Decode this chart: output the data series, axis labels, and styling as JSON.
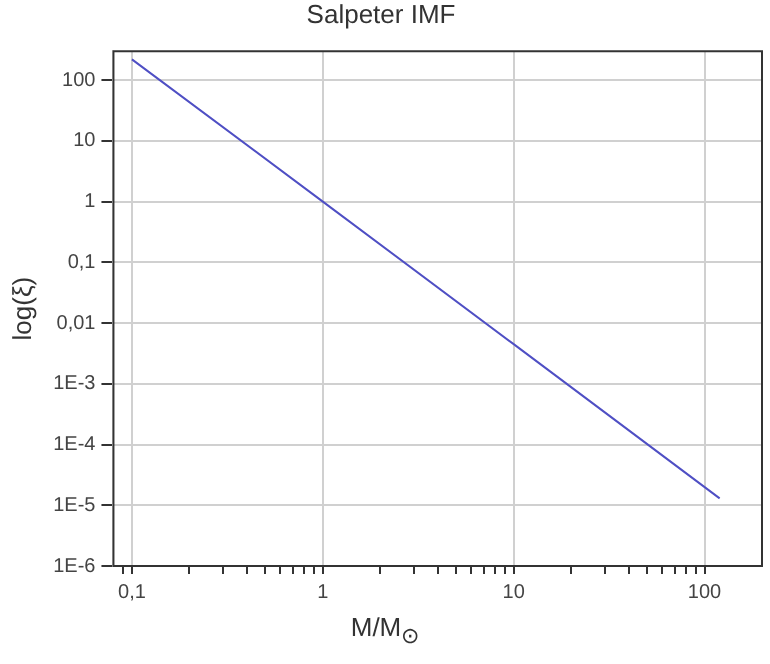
{
  "chart_data": {
    "type": "line",
    "title": "Salpeter IMF",
    "xlabel": "M/M$_{⊙}$",
    "ylabel": "log(ξ)",
    "log": "xy",
    "grid": true,
    "legend": false,
    "marker": "none",
    "line_style": "solid",
    "x": [
      0.1,
      1,
      10,
      120
    ],
    "series": [
      {
        "color": "#4f4fc4",
        "values": [
          220,
          1,
          0.0045,
          1.3e-05
        ]
      }
    ],
    "xlim": [
      0.08,
      200
    ],
    "ylim": [
      1e-06,
      300
    ],
    "xticks": [
      {
        "value": 0.09,
        "label": null
      },
      {
        "value": 0.1,
        "label": "0,1"
      },
      {
        "value": 0.2,
        "label": null
      },
      {
        "value": 0.3,
        "label": null
      },
      {
        "value": 0.4,
        "label": null
      },
      {
        "value": 0.5,
        "label": null
      },
      {
        "value": 0.6,
        "label": null
      },
      {
        "value": 0.7,
        "label": null
      },
      {
        "value": 0.8,
        "label": null
      },
      {
        "value": 0.9,
        "label": null
      },
      1,
      {
        "value": 2,
        "label": null
      },
      {
        "value": 3,
        "label": null
      },
      {
        "value": 4,
        "label": null
      },
      {
        "value": 5,
        "label": null
      },
      {
        "value": 6,
        "label": null
      },
      {
        "value": 7,
        "label": null
      },
      {
        "value": 8,
        "label": null
      },
      {
        "value": 9,
        "label": null
      },
      10,
      {
        "value": 20,
        "label": null
      },
      {
        "value": 30,
        "label": null
      },
      {
        "value": 40,
        "label": null
      },
      {
        "value": 50,
        "label": null
      },
      {
        "value": 60,
        "label": null
      },
      {
        "value": 70,
        "label": null
      },
      {
        "value": 80,
        "label": null
      },
      {
        "value": 90,
        "label": null
      },
      100
    ],
    "yticks": [
      {
        "value": 1e-06,
        "label": "1E-6"
      },
      {
        "value": 1e-05,
        "label": "1E-5"
      },
      {
        "value": 0.0001,
        "label": "1E-4"
      },
      {
        "value": 0.001,
        "label": "1E-3"
      },
      {
        "value": 0.01,
        "label": "0,01"
      },
      {
        "value": 0.1,
        "label": "0,1"
      },
      1,
      10,
      100
    ]
  }
}
